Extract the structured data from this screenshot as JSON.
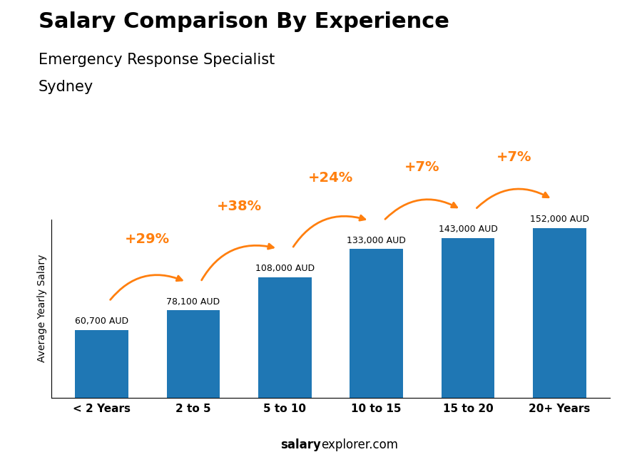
{
  "chart_data": {
    "type": "bar",
    "title": "Salary Comparison By Experience",
    "subtitle": [
      "Emergency Response Specialist",
      "Sydney"
    ],
    "ylabel": "Average Yearly Salary",
    "categories": [
      "< 2 Years",
      "2 to 5",
      "5 to 10",
      "10 to 15",
      "15 to 20",
      "20+ Years"
    ],
    "values": [
      60700,
      78100,
      108000,
      133000,
      143000,
      152000
    ],
    "value_labels": [
      "60,700 AUD",
      "78,100 AUD",
      "108,000 AUD",
      "133,000 AUD",
      "143,000 AUD",
      "152,000 AUD"
    ],
    "data_labels": true,
    "change_labels": [
      "+29%",
      "+38%",
      "+24%",
      "+7%",
      "+7%"
    ],
    "footer": [
      "salary",
      "explorer.com"
    ],
    "ylim": [
      0,
      159600
    ],
    "yticks": [],
    "tick_labels": "x",
    "grid": false
  }
}
